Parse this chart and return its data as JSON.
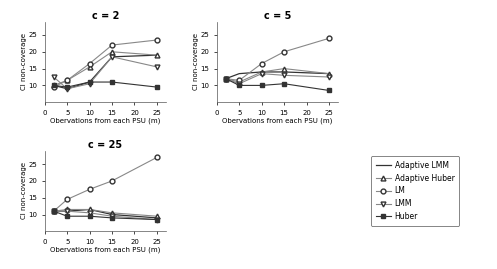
{
  "x": [
    2,
    5,
    10,
    15,
    25
  ],
  "panels": {
    "c2": {
      "title": "c = 2",
      "Adaptive_LMM": [
        10.0,
        9.0,
        11.0,
        18.5,
        19.0
      ],
      "Adaptive_Huber": [
        10.0,
        11.5,
        15.5,
        20.0,
        19.0
      ],
      "LM": [
        9.5,
        11.5,
        16.5,
        22.0,
        23.5
      ],
      "LMM": [
        12.5,
        9.0,
        10.5,
        18.5,
        15.5
      ],
      "Huber": [
        10.0,
        9.5,
        11.0,
        11.0,
        9.5
      ]
    },
    "c5": {
      "title": "c = 5",
      "Adaptive_LMM": [
        12.0,
        13.5,
        14.0,
        14.0,
        13.5
      ],
      "Adaptive_Huber": [
        12.0,
        11.0,
        14.0,
        15.0,
        13.5
      ],
      "LM": [
        12.0,
        11.5,
        16.5,
        20.0,
        24.0
      ],
      "LMM": [
        12.0,
        10.5,
        13.5,
        13.0,
        12.5
      ],
      "Huber": [
        12.0,
        10.0,
        10.0,
        10.5,
        8.5
      ]
    },
    "c25": {
      "title": "c = 25",
      "Adaptive_LMM": [
        11.0,
        11.0,
        11.5,
        10.0,
        9.0
      ],
      "Adaptive_Huber": [
        11.0,
        11.5,
        11.5,
        10.5,
        9.5
      ],
      "LM": [
        11.0,
        14.5,
        17.5,
        20.0,
        27.0
      ],
      "LMM": [
        11.0,
        11.0,
        10.5,
        9.5,
        8.5
      ],
      "Huber": [
        11.0,
        9.5,
        9.5,
        9.0,
        8.5
      ]
    }
  },
  "ylabel": "CI non-coverage",
  "xlabel": "Obervations from each PSU (m)",
  "yticks": [
    10,
    15,
    20,
    25
  ],
  "xticks": [
    0,
    5,
    10,
    15,
    20,
    25
  ],
  "xlim": [
    0,
    27
  ],
  "ylim": [
    5,
    29
  ],
  "legend_labels": [
    "Adaptive LMM",
    "Adaptive Huber",
    "LM",
    "LMM",
    "Huber"
  ],
  "gray": "#888888",
  "dark": "#333333"
}
